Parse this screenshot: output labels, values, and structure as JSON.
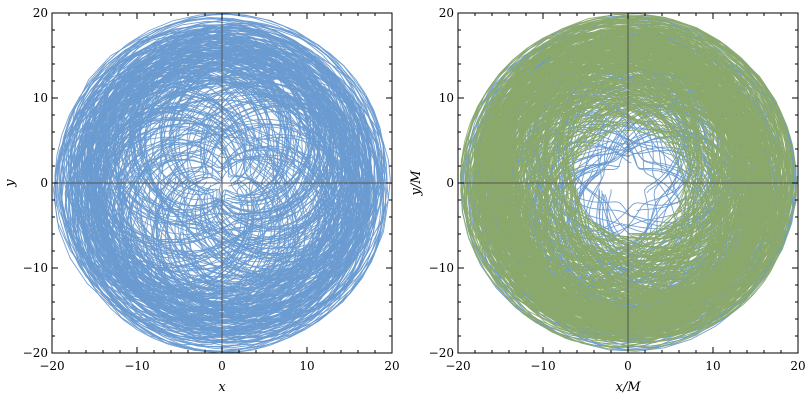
{
  "chart_data": [
    {
      "type": "line",
      "xlabel": "x",
      "ylabel": "y",
      "xlim": [
        -20,
        20
      ],
      "ylim": [
        -20,
        20
      ],
      "xticks": [
        -20,
        -10,
        0,
        10,
        20
      ],
      "yticks": [
        -20,
        -10,
        0,
        10,
        20
      ],
      "xtick_labels": [
        "−20",
        "−10",
        "0",
        "10",
        "20"
      ],
      "ytick_labels": [
        "−20",
        "−10",
        "0",
        "10",
        "20"
      ],
      "axes_through_origin": true,
      "series": [
        {
          "color": "#6a9bd1",
          "region": {
            "center": [
              0,
              0
            ],
            "inner_radius": 0,
            "outer_radius": 20
          }
        }
      ]
    },
    {
      "type": "line",
      "xlabel": "x/M",
      "ylabel": "y/M",
      "xlim": [
        -20,
        20
      ],
      "ylim": [
        -20,
        20
      ],
      "xticks": [
        -20,
        -10,
        0,
        10,
        20
      ],
      "yticks": [
        -20,
        -10,
        0,
        10,
        20
      ],
      "xtick_labels": [
        "−20",
        "−10",
        "0",
        "10",
        "20"
      ],
      "ytick_labels": [
        "−20",
        "−10",
        "0",
        "10",
        "20"
      ],
      "axes_through_origin": true,
      "series": [
        {
          "color": "#6a9bd1",
          "region": {
            "center": [
              0,
              0
            ],
            "inner_radius": 2,
            "outer_radius": 20
          }
        },
        {
          "color": "#8ba96b",
          "region": {
            "center": [
              0,
              0
            ],
            "inner_radius": 6,
            "outer_radius": 20
          }
        }
      ]
    }
  ]
}
